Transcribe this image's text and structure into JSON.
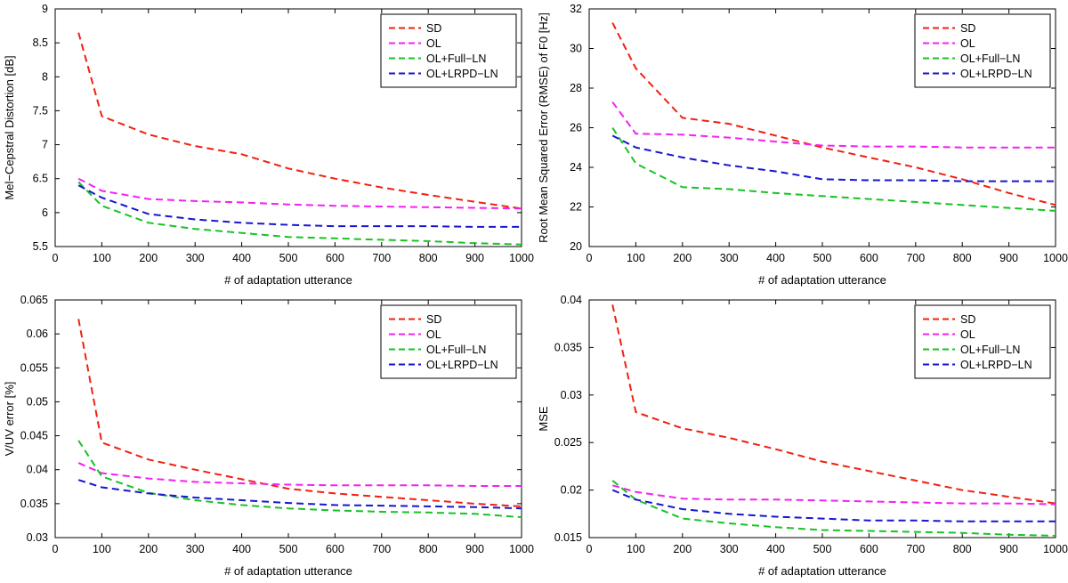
{
  "page": {
    "background": "#ffffff",
    "description": "2x2 grid of MATLAB-style dashed line plots comparing adaptation methods"
  },
  "legend": {
    "entries": [
      "SD",
      "OL",
      "OL+Full−LN",
      "OL+LRPD−LN"
    ],
    "position": "top-right"
  },
  "colors": {
    "sd": "#f02011",
    "ol": "#f320f3",
    "ol_full_ln": "#17c324",
    "ol_lrpd_ln": "#1616cf",
    "axis": "#000000",
    "plot_background": "#ffffff"
  },
  "chart_data": [
    {
      "type": "line",
      "title": "",
      "xlabel": "# of adaptation utterance",
      "ylabel": "Mel−Cepstral Distortion [dB]",
      "xlim": [
        0,
        1000
      ],
      "ylim": [
        5.5,
        9
      ],
      "grid": false,
      "legend_position": "top-right",
      "xticks": [
        0,
        100,
        200,
        300,
        400,
        500,
        600,
        700,
        800,
        900,
        1000
      ],
      "xticklabels": [
        "0",
        "100",
        "200",
        "300",
        "400",
        "500",
        "600",
        "700",
        "800",
        "900",
        "1000"
      ],
      "yticks": [
        5.5,
        6,
        6.5,
        7,
        7.5,
        8,
        8.5,
        9
      ],
      "yticklabels": [
        "5.5",
        "6",
        "6.5",
        "7",
        "7.5",
        "8",
        "8.5",
        "9"
      ],
      "x": [
        50,
        100,
        200,
        300,
        400,
        500,
        600,
        700,
        800,
        900,
        1000
      ],
      "series": [
        {
          "name": "SD",
          "color": "#f02011",
          "values": [
            8.65,
            7.42,
            7.15,
            6.98,
            6.86,
            6.65,
            6.5,
            6.37,
            6.26,
            6.16,
            6.06
          ]
        },
        {
          "name": "OL",
          "color": "#f320f3",
          "values": [
            6.5,
            6.32,
            6.2,
            6.17,
            6.15,
            6.12,
            6.1,
            6.09,
            6.08,
            6.07,
            6.06
          ]
        },
        {
          "name": "OL+Full−LN",
          "color": "#17c324",
          "values": [
            6.45,
            6.1,
            5.85,
            5.76,
            5.7,
            5.64,
            5.62,
            5.6,
            5.58,
            5.55,
            5.53
          ]
        },
        {
          "name": "OL+LRPD−LN",
          "color": "#1616cf",
          "values": [
            6.4,
            6.22,
            5.98,
            5.9,
            5.85,
            5.82,
            5.8,
            5.8,
            5.8,
            5.79,
            5.79
          ]
        }
      ]
    },
    {
      "type": "line",
      "title": "",
      "xlabel": "# of adaptation utterance",
      "ylabel": "Root Mean Squared Error (RMSE) of F0 [Hz]",
      "xlim": [
        0,
        1000
      ],
      "ylim": [
        20,
        32
      ],
      "grid": false,
      "legend_position": "top-right",
      "xticks": [
        0,
        100,
        200,
        300,
        400,
        500,
        600,
        700,
        800,
        900,
        1000
      ],
      "xticklabels": [
        "0",
        "100",
        "200",
        "300",
        "400",
        "500",
        "600",
        "700",
        "800",
        "900",
        "1000"
      ],
      "yticks": [
        20,
        22,
        24,
        26,
        28,
        30,
        32
      ],
      "yticklabels": [
        "20",
        "22",
        "24",
        "26",
        "28",
        "30",
        "32"
      ],
      "x": [
        50,
        100,
        200,
        300,
        400,
        500,
        600,
        700,
        800,
        900,
        1000
      ],
      "series": [
        {
          "name": "SD",
          "color": "#f02011",
          "values": [
            31.3,
            29.0,
            26.5,
            26.2,
            25.6,
            25.0,
            24.5,
            24.0,
            23.4,
            22.7,
            22.1
          ]
        },
        {
          "name": "OL",
          "color": "#f320f3",
          "values": [
            27.3,
            25.7,
            25.65,
            25.5,
            25.3,
            25.1,
            25.05,
            25.05,
            25.0,
            25.0,
            25.0
          ]
        },
        {
          "name": "OL+Full−LN",
          "color": "#17c324",
          "values": [
            26.0,
            24.2,
            23.0,
            22.9,
            22.7,
            22.55,
            22.4,
            22.25,
            22.1,
            21.95,
            21.8
          ]
        },
        {
          "name": "OL+LRPD−LN",
          "color": "#1616cf",
          "values": [
            25.6,
            25.0,
            24.5,
            24.1,
            23.8,
            23.4,
            23.35,
            23.35,
            23.3,
            23.3,
            23.3
          ]
        }
      ]
    },
    {
      "type": "line",
      "title": "",
      "xlabel": "# of adaptation utterance",
      "ylabel": "V/UV error [%]",
      "xlim": [
        0,
        1000
      ],
      "ylim": [
        0.03,
        0.065
      ],
      "grid": false,
      "legend_position": "top-right",
      "xticks": [
        0,
        100,
        200,
        300,
        400,
        500,
        600,
        700,
        800,
        900,
        1000
      ],
      "xticklabels": [
        "0",
        "100",
        "200",
        "300",
        "400",
        "500",
        "600",
        "700",
        "800",
        "900",
        "1000"
      ],
      "yticks": [
        0.03,
        0.035,
        0.04,
        0.045,
        0.05,
        0.055,
        0.06,
        0.065
      ],
      "yticklabels": [
        "0.03",
        "0.035",
        "0.04",
        "0.045",
        "0.05",
        "0.055",
        "0.06",
        "0.065"
      ],
      "x": [
        50,
        100,
        200,
        300,
        400,
        500,
        600,
        700,
        800,
        900,
        1000
      ],
      "series": [
        {
          "name": "SD",
          "color": "#f02011",
          "values": [
            0.0622,
            0.044,
            0.0415,
            0.04,
            0.0386,
            0.0372,
            0.0365,
            0.036,
            0.0355,
            0.035,
            0.0346
          ]
        },
        {
          "name": "OL",
          "color": "#f320f3",
          "values": [
            0.041,
            0.0395,
            0.0387,
            0.0382,
            0.038,
            0.0378,
            0.0377,
            0.0377,
            0.0377,
            0.0376,
            0.0376
          ]
        },
        {
          "name": "OL+Full−LN",
          "color": "#17c324",
          "values": [
            0.0443,
            0.039,
            0.0366,
            0.0355,
            0.0348,
            0.0343,
            0.034,
            0.0338,
            0.0337,
            0.0335,
            0.033
          ]
        },
        {
          "name": "OL+LRPD−LN",
          "color": "#1616cf",
          "values": [
            0.0385,
            0.0374,
            0.0365,
            0.0359,
            0.0355,
            0.0351,
            0.0348,
            0.0347,
            0.0346,
            0.0345,
            0.0343
          ]
        }
      ]
    },
    {
      "type": "line",
      "title": "",
      "xlabel": "# of adaptation utterance",
      "ylabel": "MSE",
      "xlim": [
        0,
        1000
      ],
      "ylim": [
        0.015,
        0.04
      ],
      "grid": false,
      "legend_position": "top-right",
      "xticks": [
        0,
        100,
        200,
        300,
        400,
        500,
        600,
        700,
        800,
        900,
        1000
      ],
      "xticklabels": [
        "0",
        "100",
        "200",
        "300",
        "400",
        "500",
        "600",
        "700",
        "800",
        "900",
        "1000"
      ],
      "yticks": [
        0.015,
        0.02,
        0.025,
        0.03,
        0.035,
        0.04
      ],
      "yticklabels": [
        "0.015",
        "0.02",
        "0.025",
        "0.03",
        "0.035",
        "0.04"
      ],
      "x": [
        50,
        100,
        200,
        300,
        400,
        500,
        600,
        700,
        800,
        900,
        1000
      ],
      "series": [
        {
          "name": "SD",
          "color": "#f02011",
          "values": [
            0.0395,
            0.0282,
            0.0265,
            0.0255,
            0.0243,
            0.023,
            0.022,
            0.021,
            0.02,
            0.0193,
            0.0186
          ]
        },
        {
          "name": "OL",
          "color": "#f320f3",
          "values": [
            0.0205,
            0.0198,
            0.0191,
            0.019,
            0.019,
            0.0189,
            0.0188,
            0.0187,
            0.0186,
            0.0186,
            0.0185
          ]
        },
        {
          "name": "OL+Full−LN",
          "color": "#17c324",
          "values": [
            0.021,
            0.019,
            0.017,
            0.0165,
            0.0161,
            0.0158,
            0.0157,
            0.0156,
            0.0155,
            0.0153,
            0.0152
          ]
        },
        {
          "name": "OL+LRPD−LN",
          "color": "#1616cf",
          "values": [
            0.02,
            0.019,
            0.018,
            0.0175,
            0.0172,
            0.017,
            0.0168,
            0.0168,
            0.0167,
            0.0167,
            0.0167
          ]
        }
      ]
    }
  ]
}
